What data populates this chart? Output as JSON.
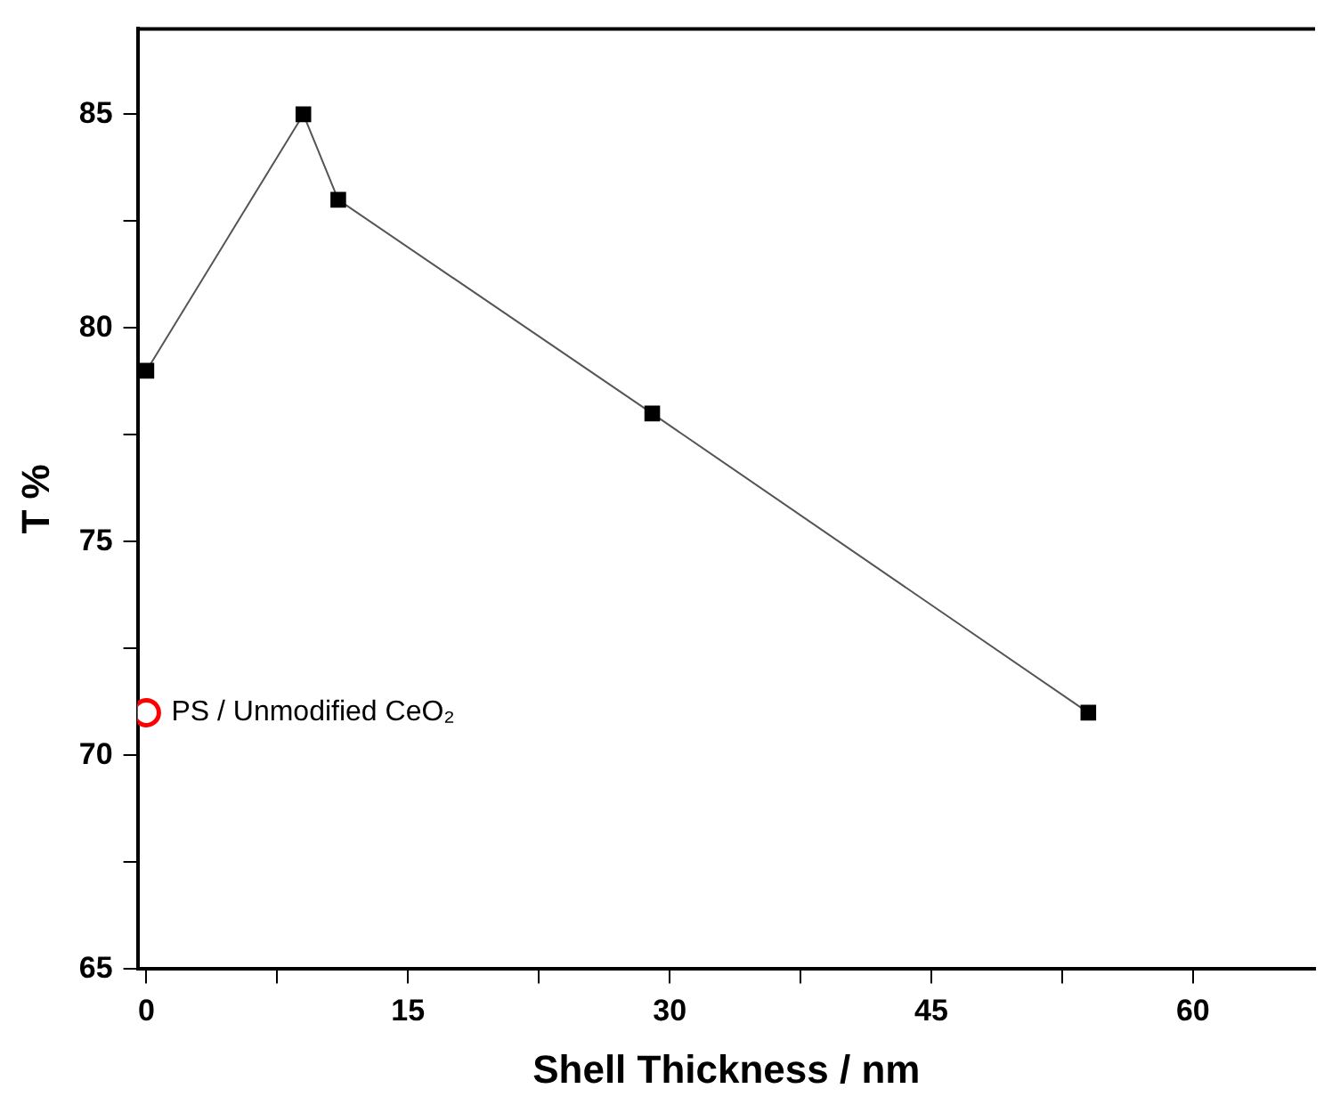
{
  "chart_data": {
    "type": "line",
    "xlabel": "Shell Thickness / nm",
    "ylabel": "T %",
    "xlim": [
      -0.5,
      67
    ],
    "xticks": [
      0,
      {
        "value": 7.5,
        "label": null
      },
      15,
      {
        "value": 22.5,
        "label": null
      },
      30,
      {
        "value": 37.5,
        "label": null
      },
      45,
      {
        "value": 52.5,
        "label": null
      },
      60
    ],
    "ylim": [
      65,
      87
    ],
    "yticks": [
      65,
      {
        "value": 67.5,
        "label": null
      },
      70,
      {
        "value": 72.5,
        "label": null
      },
      75,
      {
        "value": 77.5,
        "label": null
      },
      80,
      {
        "value": 82.5,
        "label": null
      },
      85
    ],
    "grid": false,
    "legend": false,
    "series": [
      {
        "type": "line",
        "color": "#000000",
        "marker": "square",
        "x": [
          0,
          9,
          11,
          29,
          54
        ],
        "values": [
          79,
          85,
          83,
          78,
          71
        ]
      },
      {
        "type": "scatter",
        "color": "#ff0000",
        "marker": "circle",
        "x": [
          0
        ],
        "values": [
          71
        ]
      }
    ],
    "annotations": [
      {
        "text": "PS / Unmodified CeO₂",
        "x": 0,
        "y": 71
      }
    ]
  }
}
